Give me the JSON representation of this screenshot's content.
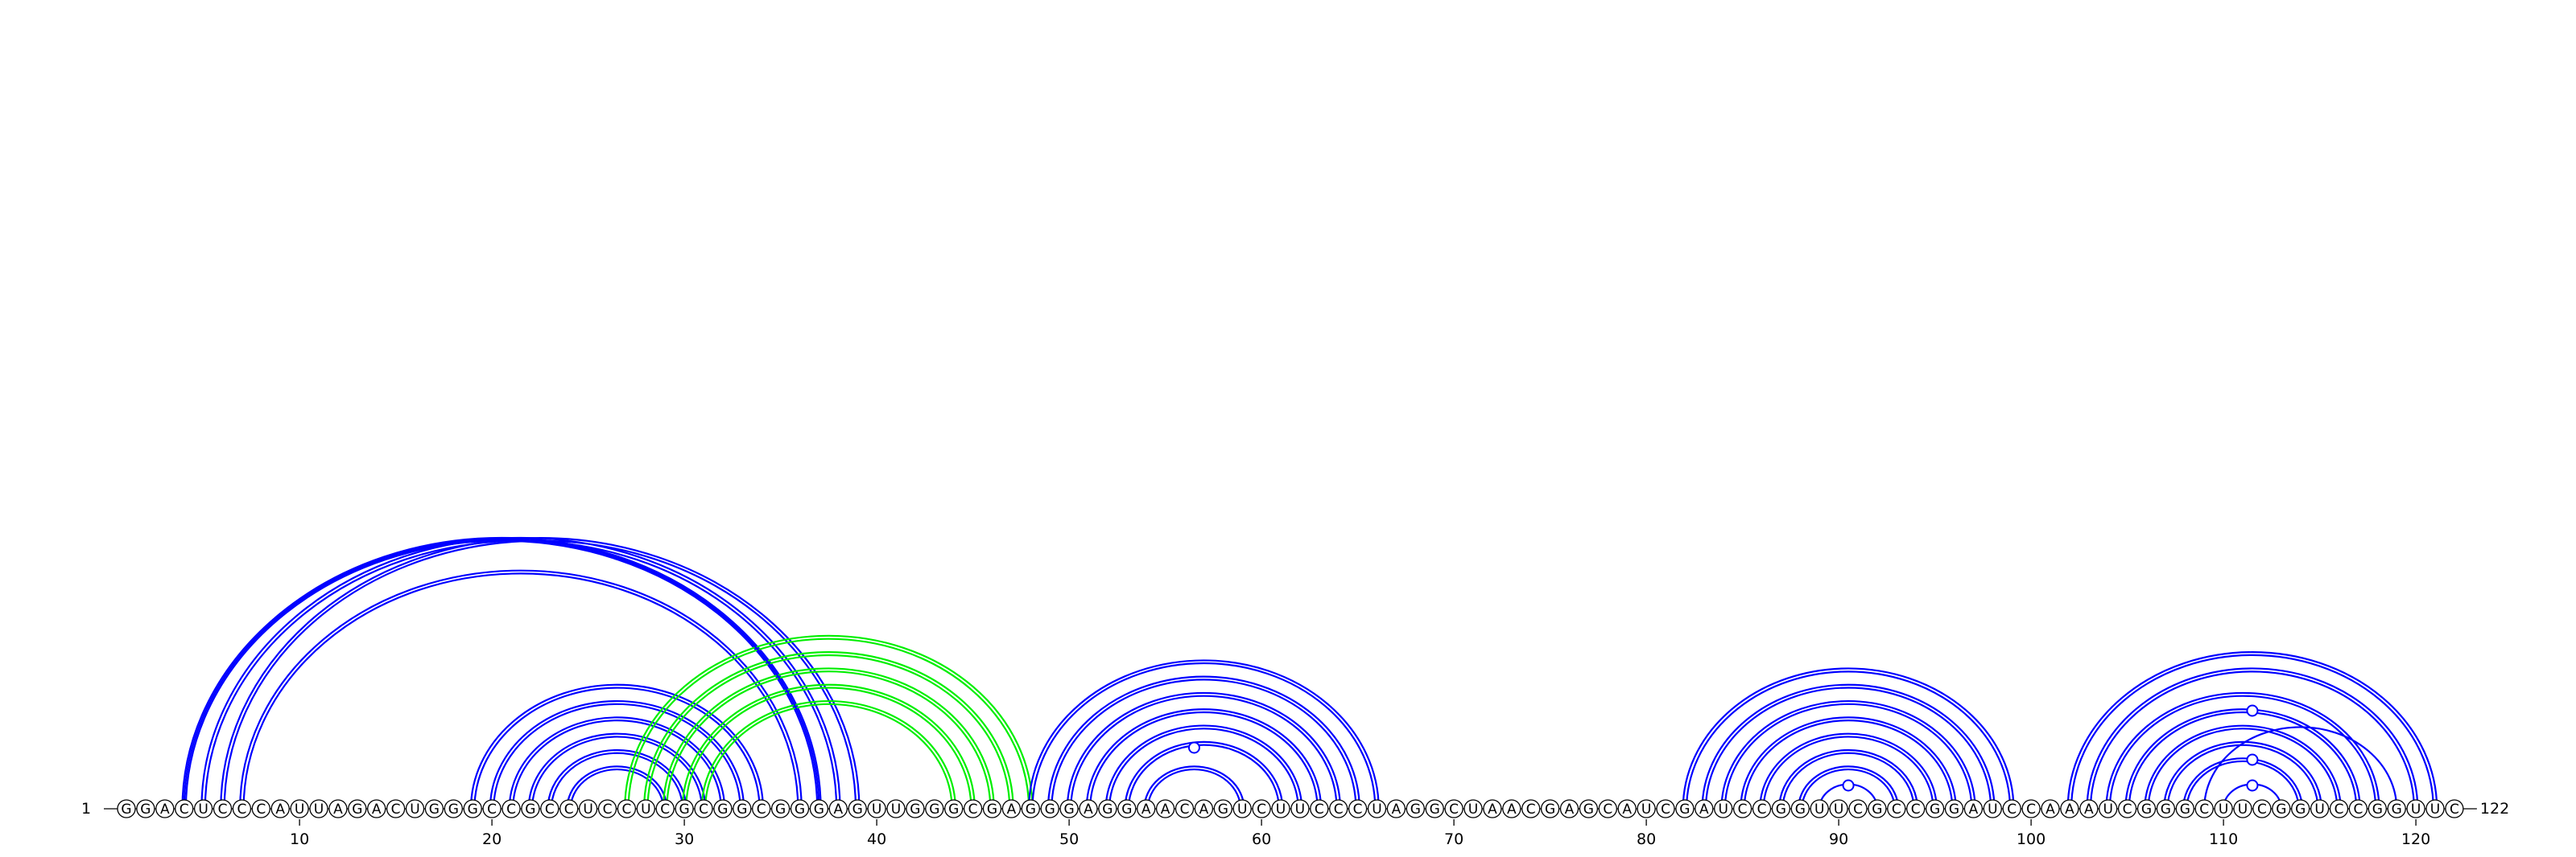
{
  "diagram": {
    "sequence": "GGACUCCCAUUAGACUGGGCCGCCUCCUCGCGGCGGGAGUUGGGCGAGGGAGGAACAGUCUUCCCUAGGCUAACGAGCAUCGAUCCGGUUCGCCGGAUCCAAAUCGGGCUUCGGUCCGGUUC",
    "start_label": "1",
    "end_label": "122",
    "ticks": [
      10,
      20,
      30,
      40,
      50,
      60,
      70,
      80,
      90,
      100,
      110,
      120
    ],
    "colors": {
      "primary_arc": "#0000ff",
      "pseudoknot_arc": "#00ee00",
      "text": "#000000"
    },
    "arc_groups": [
      {
        "name": "helix-4-37",
        "color": "primary",
        "double": true,
        "pairs": [
          [
            4,
            37
          ],
          [
            5,
            38
          ],
          [
            6,
            39
          ],
          [
            7,
            36
          ]
        ]
      },
      {
        "name": "helix-19-34",
        "color": "primary",
        "double": true,
        "pairs": [
          [
            19,
            34
          ],
          [
            20,
            33
          ],
          [
            21,
            32
          ],
          [
            22,
            31
          ],
          [
            23,
            30
          ],
          [
            24,
            29
          ]
        ]
      },
      {
        "name": "helix-27-48",
        "color": "pseudoknot",
        "double": true,
        "pairs": [
          [
            27,
            48
          ],
          [
            28,
            47
          ],
          [
            29,
            46
          ],
          [
            30,
            45
          ],
          [
            31,
            44
          ]
        ]
      },
      {
        "name": "helix-48-66",
        "color": "primary",
        "double": true,
        "pairs": [
          [
            48,
            66
          ],
          [
            49,
            65
          ],
          [
            50,
            64
          ],
          [
            51,
            63
          ],
          [
            52,
            62
          ],
          [
            53,
            61
          ],
          [
            54,
            59
          ]
        ]
      },
      {
        "name": "helix-82-99",
        "color": "primary",
        "double": true,
        "pairs": [
          [
            82,
            99
          ],
          [
            83,
            98
          ],
          [
            84,
            97
          ],
          [
            85,
            96
          ],
          [
            86,
            95
          ],
          [
            87,
            94
          ],
          [
            88,
            93
          ]
        ]
      },
      {
        "name": "helix-102-121",
        "color": "primary",
        "double": true,
        "pairs": [
          [
            102,
            121
          ],
          [
            103,
            120
          ],
          [
            104,
            118
          ],
          [
            105,
            117
          ],
          [
            106,
            116
          ],
          [
            107,
            115
          ],
          [
            108,
            114
          ]
        ]
      }
    ],
    "single_arcs": [
      {
        "from": 4,
        "to": 37,
        "color": "primary"
      },
      {
        "from": 89,
        "to": 92,
        "color": "primary"
      },
      {
        "from": 110,
        "to": 113,
        "color": "primary"
      },
      {
        "from": 109,
        "to": 119,
        "color": "primary"
      }
    ],
    "arc_markers": [
      56.5,
      90.5,
      111.5
    ]
  }
}
